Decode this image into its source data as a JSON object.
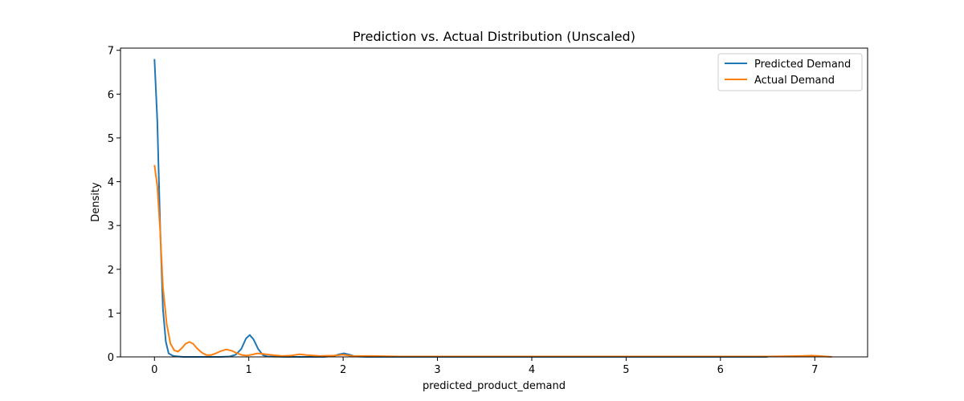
{
  "chart_data": {
    "type": "line",
    "title": "Prediction vs. Actual Distribution (Unscaled)",
    "xlabel": "predicted_product_demand",
    "ylabel": "Density",
    "xlim": [
      -0.36,
      7.56
    ],
    "ylim": [
      0,
      7.05
    ],
    "xticks": [
      0,
      1,
      2,
      3,
      4,
      5,
      6,
      7
    ],
    "yticks": [
      0,
      1,
      2,
      3,
      4,
      5,
      6,
      7
    ],
    "grid": false,
    "legend_position": "top-right",
    "series": [
      {
        "name": "Predicted Demand",
        "color": "#1f77b4",
        "points": [
          [
            0.0,
            6.8
          ],
          [
            0.03,
            5.4
          ],
          [
            0.06,
            3.0
          ],
          [
            0.09,
            1.1
          ],
          [
            0.12,
            0.35
          ],
          [
            0.15,
            0.08
          ],
          [
            0.2,
            0.02
          ],
          [
            0.3,
            0.0
          ],
          [
            0.5,
            0.0
          ],
          [
            0.7,
            0.0
          ],
          [
            0.8,
            0.01
          ],
          [
            0.86,
            0.05
          ],
          [
            0.92,
            0.18
          ],
          [
            0.97,
            0.42
          ],
          [
            1.01,
            0.5
          ],
          [
            1.05,
            0.4
          ],
          [
            1.1,
            0.18
          ],
          [
            1.15,
            0.04
          ],
          [
            1.2,
            0.01
          ],
          [
            1.4,
            0.0
          ],
          [
            1.8,
            0.0
          ],
          [
            1.9,
            0.02
          ],
          [
            1.96,
            0.06
          ],
          [
            2.01,
            0.08
          ],
          [
            2.07,
            0.05
          ],
          [
            2.13,
            0.01
          ],
          [
            2.25,
            0.0
          ],
          [
            3.0,
            0.0
          ],
          [
            4.0,
            0.0
          ],
          [
            5.0,
            0.0
          ],
          [
            6.0,
            0.0
          ],
          [
            6.5,
            0.0
          ]
        ]
      },
      {
        "name": "Actual Demand",
        "color": "#ff7f0e",
        "points": [
          [
            0.0,
            4.38
          ],
          [
            0.03,
            3.9
          ],
          [
            0.06,
            2.9
          ],
          [
            0.09,
            1.6
          ],
          [
            0.13,
            0.75
          ],
          [
            0.17,
            0.3
          ],
          [
            0.21,
            0.15
          ],
          [
            0.25,
            0.12
          ],
          [
            0.29,
            0.2
          ],
          [
            0.33,
            0.3
          ],
          [
            0.37,
            0.34
          ],
          [
            0.41,
            0.3
          ],
          [
            0.45,
            0.2
          ],
          [
            0.5,
            0.1
          ],
          [
            0.55,
            0.04
          ],
          [
            0.6,
            0.04
          ],
          [
            0.65,
            0.08
          ],
          [
            0.7,
            0.13
          ],
          [
            0.76,
            0.17
          ],
          [
            0.82,
            0.14
          ],
          [
            0.88,
            0.08
          ],
          [
            0.93,
            0.04
          ],
          [
            0.98,
            0.03
          ],
          [
            1.03,
            0.05
          ],
          [
            1.09,
            0.08
          ],
          [
            1.15,
            0.07
          ],
          [
            1.25,
            0.04
          ],
          [
            1.35,
            0.02
          ],
          [
            1.45,
            0.03
          ],
          [
            1.54,
            0.06
          ],
          [
            1.62,
            0.04
          ],
          [
            1.75,
            0.02
          ],
          [
            1.9,
            0.03
          ],
          [
            2.0,
            0.05
          ],
          [
            2.1,
            0.02
          ],
          [
            2.3,
            0.02
          ],
          [
            2.6,
            0.01
          ],
          [
            3.0,
            0.01
          ],
          [
            3.5,
            0.01
          ],
          [
            4.0,
            0.01
          ],
          [
            5.0,
            0.01
          ],
          [
            6.0,
            0.01
          ],
          [
            6.5,
            0.01
          ],
          [
            6.85,
            0.02
          ],
          [
            6.97,
            0.03
          ],
          [
            7.05,
            0.02
          ],
          [
            7.18,
            0.0
          ]
        ]
      }
    ]
  }
}
